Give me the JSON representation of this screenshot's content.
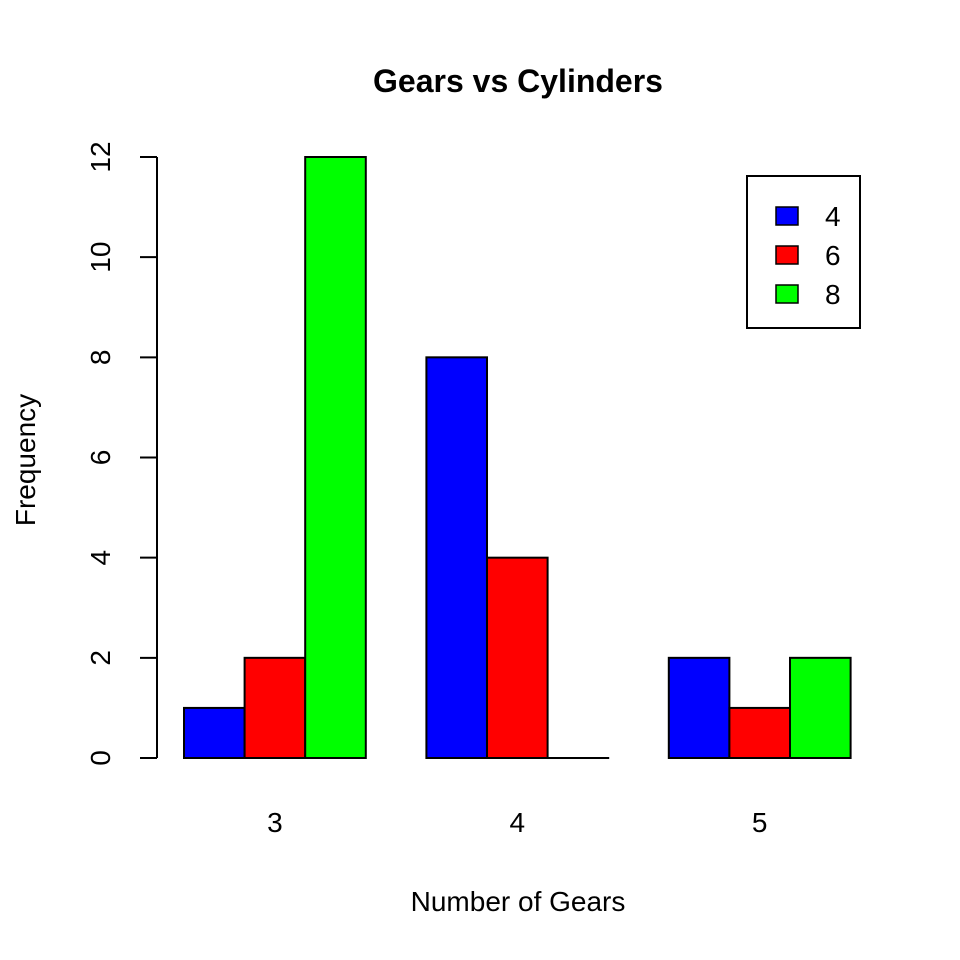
{
  "chart_data": {
    "type": "bar",
    "title": "Gears vs Cylinders",
    "xlabel": "Number of Gears",
    "ylabel": "Frequency",
    "categories": [
      "3",
      "4",
      "5"
    ],
    "series": [
      {
        "name": "4",
        "color": "#0000ff",
        "values": [
          1,
          8,
          2
        ]
      },
      {
        "name": "6",
        "color": "#ff0000",
        "values": [
          2,
          4,
          1
        ]
      },
      {
        "name": "8",
        "color": "#00ff00",
        "values": [
          12,
          0,
          2
        ]
      }
    ],
    "y_ticks": [
      "0",
      "2",
      "4",
      "6",
      "8",
      "10",
      "12"
    ],
    "ylim": [
      0,
      12
    ],
    "grid": false,
    "legend_position": "top-right"
  }
}
